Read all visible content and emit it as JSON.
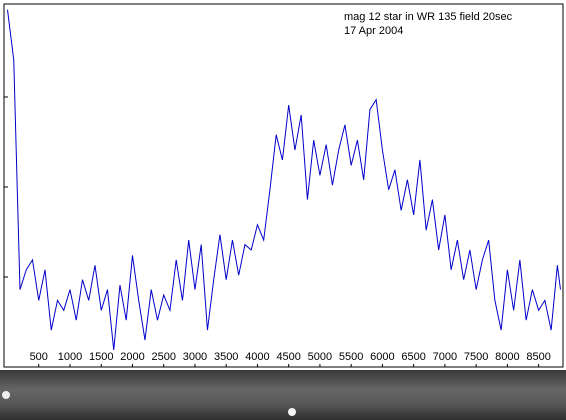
{
  "chart_data": {
    "type": "line",
    "title": "mag 12 star in WR 135 field 20sec",
    "subtitle": "17 Apr 2004",
    "x": [
      0,
      100,
      200,
      300,
      400,
      500,
      600,
      700,
      800,
      900,
      1000,
      1100,
      1200,
      1300,
      1400,
      1500,
      1600,
      1700,
      1800,
      1900,
      2000,
      2100,
      2200,
      2300,
      2400,
      2500,
      2600,
      2700,
      2800,
      2900,
      3000,
      3100,
      3200,
      3300,
      3400,
      3500,
      3600,
      3700,
      3800,
      3900,
      4000,
      4100,
      4200,
      4300,
      4400,
      4500,
      4600,
      4700,
      4800,
      4900,
      5000,
      5100,
      5200,
      5300,
      5400,
      5500,
      5600,
      5700,
      5800,
      5900,
      6000,
      6100,
      6200,
      6300,
      6400,
      6500,
      6600,
      6700,
      6800,
      6900,
      7000,
      7100,
      7200,
      7300,
      7400,
      7500,
      7600,
      7700,
      7800,
      7900,
      8000,
      8100,
      8200,
      8300,
      8400,
      8500,
      8600,
      8700,
      8800,
      8850
    ],
    "values": [
      3.97,
      3.41,
      0.86,
      1.08,
      1.19,
      0.74,
      1.08,
      0.41,
      0.74,
      0.63,
      0.86,
      0.52,
      0.97,
      0.74,
      1.13,
      0.63,
      0.86,
      0.19,
      0.91,
      0.52,
      1.24,
      0.74,
      0.3,
      0.86,
      0.52,
      0.8,
      0.63,
      1.19,
      0.74,
      1.41,
      0.86,
      1.36,
      0.41,
      0.97,
      1.47,
      0.97,
      1.41,
      1.02,
      1.36,
      1.3,
      1.58,
      1.41,
      1.97,
      2.58,
      2.3,
      2.91,
      2.41,
      2.8,
      1.86,
      2.52,
      2.13,
      2.47,
      2.02,
      2.41,
      2.69,
      2.24,
      2.52,
      2.08,
      2.86,
      2.97,
      2.41,
      1.97,
      2.19,
      1.74,
      2.08,
      1.69,
      2.3,
      1.52,
      1.86,
      1.3,
      1.69,
      1.08,
      1.41,
      0.97,
      1.3,
      0.86,
      1.19,
      1.41,
      0.74,
      0.41,
      1.08,
      0.63,
      1.19,
      0.52,
      0.86,
      0.63,
      0.74,
      0.41,
      1.13,
      0.86
    ],
    "color": "#0000cc",
    "xlim": [
      -56,
      8890
    ],
    "ylim": [
      0,
      4.033
    ],
    "xticks": [
      500,
      1000,
      1500,
      2000,
      2500,
      3000,
      3500,
      4000,
      4500,
      5000,
      5500,
      6000,
      6500,
      7000,
      7500,
      8000,
      8500
    ],
    "yticks": [
      1,
      2,
      3
    ]
  }
}
